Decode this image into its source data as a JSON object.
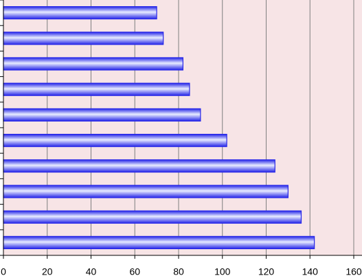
{
  "chart_data": {
    "type": "bar",
    "orientation": "horizontal",
    "categories": [
      null,
      null,
      null,
      null,
      null,
      null,
      null,
      null,
      null,
      null
    ],
    "values": [
      70,
      73,
      82,
      85,
      90,
      102,
      124,
      130,
      136,
      142
    ],
    "color": "#2626e8",
    "xlim": [
      0,
      160
    ],
    "xticks": [
      0,
      20,
      40,
      60,
      80,
      100,
      120,
      140,
      160
    ],
    "grid": true
  }
}
